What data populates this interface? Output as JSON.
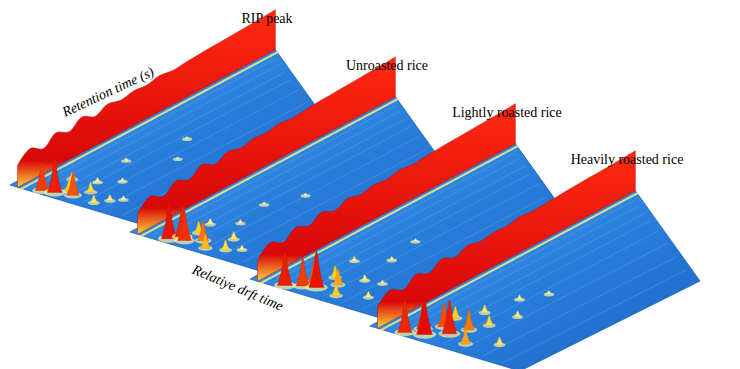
{
  "chart_data": {
    "type": "surface3d",
    "x_label": "Retention time (s)",
    "y_label": "Relatiye drft time",
    "xlim": [
      0,
      1000
    ],
    "ylim": [
      1.0,
      2.0
    ],
    "zlim": [
      0,
      1
    ],
    "tick_labels": false,
    "panels": [
      {
        "title": "RIP peak",
        "rip": {
          "drift_time": 1.05,
          "retention_time": [
            0,
            50,
            100,
            150,
            200,
            250,
            300,
            350,
            400,
            450,
            500,
            550,
            600,
            650,
            700,
            750,
            800,
            850,
            900,
            950,
            1000
          ],
          "intensity": [
            0.55,
            0.8,
            0.62,
            0.85,
            0.7,
            0.9,
            0.74,
            0.88,
            0.8,
            0.86,
            0.83,
            0.9,
            0.85,
            0.88,
            0.9,
            0.92,
            0.93,
            0.95,
            0.96,
            0.98,
            1.0
          ]
        },
        "peaks": {
          "retention_time": [
            20,
            30,
            45,
            60,
            90,
            120,
            80,
            150,
            200,
            300,
            420,
            520,
            110,
            40
          ],
          "drift_time": [
            1.18,
            1.25,
            1.35,
            1.3,
            1.4,
            1.22,
            1.55,
            1.35,
            1.45,
            1.3,
            1.5,
            1.38,
            1.6,
            1.5
          ],
          "intensity": [
            0.7,
            0.85,
            0.6,
            0.3,
            0.25,
            0.2,
            0.15,
            0.12,
            0.1,
            0.08,
            0.06,
            0.07,
            0.1,
            0.2
          ]
        }
      },
      {
        "title": "Unroasted rice",
        "rip": {
          "drift_time": 1.05,
          "retention_time": [
            0,
            50,
            100,
            150,
            200,
            250,
            300,
            350,
            400,
            450,
            500,
            550,
            600,
            650,
            700,
            750,
            800,
            850,
            900,
            950,
            1000
          ],
          "intensity": [
            0.5,
            0.78,
            0.6,
            0.82,
            0.68,
            0.88,
            0.72,
            0.86,
            0.78,
            0.85,
            0.82,
            0.88,
            0.84,
            0.87,
            0.9,
            0.91,
            0.93,
            0.94,
            0.96,
            0.97,
            1.0
          ]
        },
        "peaks": {
          "retention_time": [
            25,
            40,
            55,
            70,
            35,
            100,
            130,
            160,
            220,
            350,
            480,
            90,
            60
          ],
          "drift_time": [
            1.22,
            1.3,
            1.26,
            1.38,
            1.45,
            1.3,
            1.5,
            1.28,
            1.4,
            1.35,
            1.45,
            1.62,
            1.55
          ],
          "intensity": [
            0.9,
            0.75,
            0.8,
            0.5,
            0.35,
            0.3,
            0.2,
            0.15,
            0.1,
            0.08,
            0.07,
            0.12,
            0.25
          ]
        }
      },
      {
        "title": "Lightly roasted rice",
        "rip": {
          "drift_time": 1.05,
          "retention_time": [
            0,
            50,
            100,
            150,
            200,
            250,
            300,
            350,
            400,
            450,
            500,
            550,
            600,
            650,
            700,
            750,
            800,
            850,
            900,
            950,
            1000
          ],
          "intensity": [
            0.52,
            0.8,
            0.63,
            0.84,
            0.7,
            0.87,
            0.73,
            0.87,
            0.79,
            0.86,
            0.82,
            0.89,
            0.85,
            0.88,
            0.9,
            0.92,
            0.93,
            0.95,
            0.96,
            0.98,
            1.0
          ]
        },
        "peaks": {
          "retention_time": [
            20,
            45,
            60,
            80,
            110,
            140,
            50,
            180,
            250,
            330,
            460,
            100,
            200
          ],
          "drift_time": [
            1.2,
            1.28,
            1.35,
            1.3,
            1.42,
            1.35,
            1.5,
            1.5,
            1.3,
            1.45,
            1.4,
            1.65,
            1.6
          ],
          "intensity": [
            0.85,
            0.7,
            0.9,
            0.55,
            0.4,
            0.3,
            0.3,
            0.15,
            0.12,
            0.1,
            0.08,
            0.15,
            0.1
          ]
        }
      },
      {
        "title": "Heavily roasted rice",
        "rip": {
          "drift_time": 1.05,
          "retention_time": [
            0,
            50,
            100,
            150,
            200,
            250,
            300,
            350,
            400,
            450,
            500,
            550,
            600,
            650,
            700,
            750,
            800,
            850,
            900,
            950,
            1000
          ],
          "intensity": [
            0.54,
            0.79,
            0.62,
            0.83,
            0.69,
            0.88,
            0.74,
            0.87,
            0.8,
            0.85,
            0.83,
            0.89,
            0.86,
            0.88,
            0.9,
            0.92,
            0.94,
            0.95,
            0.96,
            0.98,
            1.0
          ]
        },
        "peaks": {
          "retention_time": [
            20,
            40,
            65,
            85,
            110,
            140,
            60,
            170,
            200,
            250,
            300,
            380,
            470,
            120
          ],
          "drift_time": [
            1.2,
            1.3,
            1.25,
            1.4,
            1.32,
            1.45,
            1.55,
            1.3,
            1.5,
            1.38,
            1.55,
            1.42,
            1.5,
            1.7
          ],
          "intensity": [
            0.8,
            0.95,
            0.7,
            0.85,
            0.6,
            0.5,
            0.4,
            0.3,
            0.25,
            0.2,
            0.15,
            0.12,
            0.1,
            0.2
          ]
        }
      }
    ]
  }
}
